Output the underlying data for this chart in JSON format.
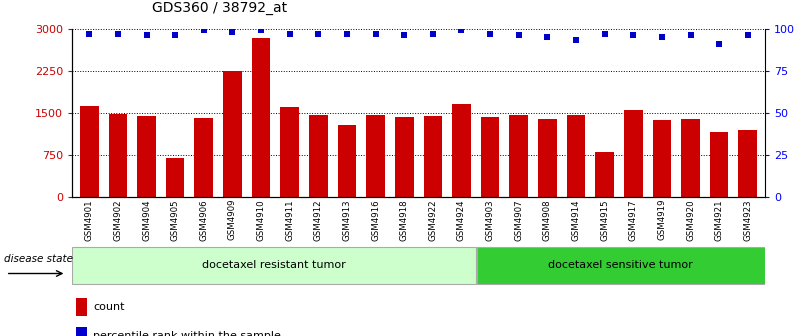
{
  "title": "GDS360 / 38792_at",
  "categories": [
    "GSM4901",
    "GSM4902",
    "GSM4904",
    "GSM4905",
    "GSM4906",
    "GSM4909",
    "GSM4910",
    "GSM4911",
    "GSM4912",
    "GSM4913",
    "GSM4916",
    "GSM4918",
    "GSM4922",
    "GSM4924",
    "GSM4903",
    "GSM4907",
    "GSM4908",
    "GSM4914",
    "GSM4915",
    "GSM4917",
    "GSM4919",
    "GSM4920",
    "GSM4921",
    "GSM4923"
  ],
  "bar_values": [
    1620,
    1480,
    1430,
    680,
    1410,
    2250,
    2830,
    1600,
    1460,
    1280,
    1460,
    1420,
    1430,
    1650,
    1420,
    1450,
    1390,
    1450,
    790,
    1540,
    1360,
    1380,
    1160,
    1180
  ],
  "percentile_values": [
    97,
    97,
    96,
    96,
    99,
    98,
    99,
    97,
    97,
    97,
    97,
    96,
    97,
    99,
    97,
    96,
    95,
    93,
    97,
    96,
    95,
    96,
    91,
    96
  ],
  "bar_color": "#CC0000",
  "dot_color": "#0000CC",
  "ylim_left": [
    0,
    3000
  ],
  "ylim_right": [
    0,
    100
  ],
  "yticks_left": [
    0,
    750,
    1500,
    2250,
    3000
  ],
  "yticks_right": [
    0,
    25,
    50,
    75,
    100
  ],
  "n_group1": 14,
  "group1_label": "docetaxel resistant tumor",
  "group2_label": "docetaxel sensitive tumor",
  "disease_state_label": "disease state",
  "legend_count_label": "count",
  "legend_percentile_label": "percentile rank within the sample",
  "background_color": "#ffffff",
  "group1_bg": "#ccffcc",
  "group2_bg": "#33cc33",
  "xtick_bg": "#cccccc",
  "right_yaxis_color": "#0000ff",
  "left_yaxis_color": "#cc0000"
}
